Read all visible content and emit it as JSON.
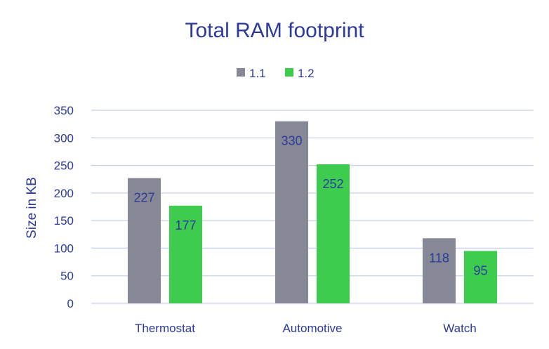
{
  "chart_data": {
    "type": "bar",
    "title": "Total RAM footprint",
    "xlabel": "",
    "ylabel": "Size in KB",
    "ylim": [
      0,
      350
    ],
    "yticks": [
      0,
      50,
      100,
      150,
      200,
      250,
      300,
      350
    ],
    "grid": true,
    "legend_position": "top-center",
    "categories": [
      "Thermostat",
      "Automotive",
      "Watch"
    ],
    "series": [
      {
        "name": "1.1",
        "color": "#868896",
        "values": [
          227,
          330,
          118
        ]
      },
      {
        "name": "1.2",
        "color": "#3ecc4f",
        "values": [
          177,
          252,
          95
        ]
      }
    ]
  }
}
